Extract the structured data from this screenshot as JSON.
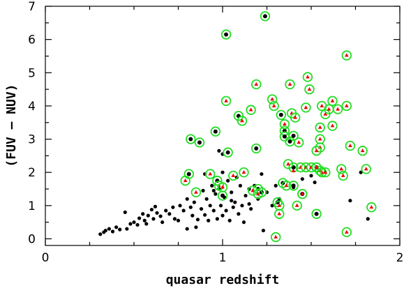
{
  "chart_data": {
    "type": "scatter",
    "xlabel": "quasar redshift",
    "ylabel": "(FUV – NUV)",
    "xlim": [
      0,
      2
    ],
    "ylim": [
      -0.2,
      7
    ],
    "x_ticks": [
      "0",
      "1",
      "2"
    ],
    "y_ticks": [
      "0",
      "1",
      "2",
      "3",
      "4",
      "5",
      "6",
      "7"
    ],
    "x_tick_values": [
      0,
      1,
      2
    ],
    "y_tick_values": [
      0,
      1,
      2,
      3,
      4,
      5,
      6,
      7
    ],
    "x_minor_step": 0.25,
    "y_minor_step": 0.5,
    "grid": false,
    "legend": "none",
    "colors": {
      "black_dot": "#000000",
      "circle": "#22dd22",
      "triangle": "#ee0000"
    },
    "series": [
      {
        "marker": "black_dot",
        "points": [
          [
            0.31,
            0.14
          ],
          [
            0.33,
            0.2
          ],
          [
            0.34,
            0.25
          ],
          [
            0.36,
            0.3
          ],
          [
            0.38,
            0.22
          ],
          [
            0.4,
            0.35
          ],
          [
            0.42,
            0.28
          ],
          [
            0.45,
            0.8
          ],
          [
            0.46,
            0.3
          ],
          [
            0.48,
            0.45
          ],
          [
            0.5,
            0.5
          ],
          [
            0.52,
            0.42
          ],
          [
            0.53,
            0.62
          ],
          [
            0.55,
            0.75
          ],
          [
            0.56,
            0.55
          ],
          [
            0.57,
            0.45
          ],
          [
            0.58,
            0.7
          ],
          [
            0.6,
            0.88
          ],
          [
            0.61,
            0.6
          ],
          [
            0.62,
            0.97
          ],
          [
            0.63,
            0.78
          ],
          [
            0.65,
            0.68
          ],
          [
            0.66,
            0.5
          ],
          [
            0.68,
            0.85
          ],
          [
            0.7,
            0.75
          ],
          [
            0.72,
            0.95
          ],
          [
            0.73,
            0.6
          ],
          [
            0.75,
            0.55
          ],
          [
            0.76,
            1.0
          ],
          [
            0.78,
            0.85
          ],
          [
            0.8,
            0.3
          ],
          [
            0.8,
            1.2
          ],
          [
            0.82,
            0.95
          ],
          [
            0.83,
            0.7
          ],
          [
            0.84,
            1.1
          ],
          [
            0.85,
            0.35
          ],
          [
            0.86,
            0.58
          ],
          [
            0.88,
            0.9
          ],
          [
            0.89,
            1.45
          ],
          [
            0.9,
            0.72
          ],
          [
            0.91,
            1.2
          ],
          [
            0.92,
            0.55
          ],
          [
            0.93,
            1.0
          ],
          [
            0.94,
            1.6
          ],
          [
            0.95,
            0.85
          ],
          [
            0.96,
            1.35
          ],
          [
            0.97,
            0.6
          ],
          [
            0.98,
            1.5
          ],
          [
            0.99,
            1.0
          ],
          [
            1.0,
            0.7
          ],
          [
            1.0,
            2.0
          ],
          [
            1.01,
            1.25
          ],
          [
            1.02,
            0.85
          ],
          [
            1.03,
            1.75
          ],
          [
            1.04,
            0.55
          ],
          [
            1.05,
            1.4
          ],
          [
            1.06,
            0.95
          ],
          [
            1.07,
            1.1
          ],
          [
            1.08,
            1.85
          ],
          [
            1.09,
            0.75
          ],
          [
            1.1,
            1.6
          ],
          [
            1.11,
            1.0
          ],
          [
            1.12,
            0.5
          ],
          [
            1.13,
            1.3
          ],
          [
            1.15,
            1.5
          ],
          [
            1.16,
            0.9
          ],
          [
            1.18,
            1.6
          ],
          [
            1.2,
            1.2
          ],
          [
            1.22,
            1.95
          ],
          [
            1.23,
            0.25
          ],
          [
            1.25,
            1.4
          ],
          [
            1.28,
            1.0
          ],
          [
            1.3,
            1.6
          ],
          [
            1.32,
            1.2
          ],
          [
            1.4,
            1.55
          ],
          [
            1.45,
            1.8
          ],
          [
            1.5,
            1.9
          ],
          [
            1.52,
            1.7
          ],
          [
            1.72,
            1.15
          ],
          [
            1.78,
            2.0
          ],
          [
            1.82,
            0.6
          ],
          [
            1.0,
            2.55
          ],
          [
            0.98,
            2.65
          ],
          [
            0.9,
            1.95
          ],
          [
            0.95,
            1.45
          ],
          [
            1.05,
            1.15
          ],
          [
            1.15,
            1.05
          ]
        ]
      },
      {
        "marker": "circle_black",
        "points": [
          [
            1.24,
            6.7
          ],
          [
            1.02,
            6.15
          ],
          [
            0.96,
            3.23
          ],
          [
            0.87,
            2.9
          ],
          [
            0.82,
            3.0
          ],
          [
            1.03,
            2.6
          ],
          [
            1.19,
            2.72
          ],
          [
            1.33,
            3.73
          ],
          [
            1.35,
            3.25
          ],
          [
            1.35,
            3.08
          ],
          [
            1.38,
            2.93
          ],
          [
            1.4,
            3.1
          ],
          [
            1.2,
            1.5
          ],
          [
            1.22,
            1.4
          ],
          [
            1.09,
            3.7
          ],
          [
            0.81,
            1.95
          ],
          [
            1.0,
            1.3
          ],
          [
            1.45,
            1.35
          ],
          [
            1.53,
            2.15
          ],
          [
            1.4,
            1.6
          ],
          [
            1.31,
            1.1
          ],
          [
            1.53,
            0.75
          ],
          [
            1.34,
            1.68
          ],
          [
            0.97,
            1.75
          ],
          [
            1.4,
            2.15
          ]
        ]
      },
      {
        "marker": "circle_triangle",
        "points": [
          [
            1.02,
            4.15
          ],
          [
            1.19,
            4.65
          ],
          [
            1.28,
            4.2
          ],
          [
            1.29,
            4.0
          ],
          [
            1.16,
            3.88
          ],
          [
            1.38,
            4.65
          ],
          [
            1.48,
            4.87
          ],
          [
            1.49,
            4.5
          ],
          [
            1.47,
            3.95
          ],
          [
            1.56,
            4.0
          ],
          [
            1.58,
            3.75
          ],
          [
            1.6,
            3.9
          ],
          [
            1.62,
            4.15
          ],
          [
            1.65,
            3.9
          ],
          [
            1.7,
            5.52
          ],
          [
            1.7,
            4.0
          ],
          [
            1.62,
            3.4
          ],
          [
            1.55,
            3.35
          ],
          [
            1.55,
            3.0
          ],
          [
            1.55,
            2.75
          ],
          [
            1.53,
            2.65
          ],
          [
            1.43,
            2.9
          ],
          [
            1.35,
            3.45
          ],
          [
            1.39,
            3.78
          ],
          [
            1.41,
            3.65
          ],
          [
            1.11,
            3.55
          ],
          [
            1.37,
            2.25
          ],
          [
            1.44,
            2.15
          ],
          [
            1.47,
            2.15
          ],
          [
            1.5,
            2.15
          ],
          [
            1.55,
            2.05
          ],
          [
            1.56,
            2.0
          ],
          [
            1.58,
            2.0
          ],
          [
            1.53,
            2.15
          ],
          [
            1.67,
            2.1
          ],
          [
            1.68,
            1.9
          ],
          [
            1.72,
            2.8
          ],
          [
            1.79,
            2.65
          ],
          [
            1.81,
            2.1
          ],
          [
            1.84,
            0.95
          ],
          [
            1.7,
            0.2
          ],
          [
            1.3,
            0.05
          ],
          [
            1.32,
            0.75
          ],
          [
            1.32,
            1.0
          ],
          [
            1.42,
            1.0
          ],
          [
            1.36,
            1.6
          ],
          [
            1.45,
            1.35
          ],
          [
            1.17,
            1.45
          ],
          [
            1.12,
            2.0
          ],
          [
            0.93,
            1.95
          ],
          [
            0.85,
            1.4
          ],
          [
            0.79,
            1.75
          ],
          [
            0.98,
            1.6
          ],
          [
            1.0,
            1.55
          ],
          [
            1.06,
            1.9
          ],
          [
            1.2,
            1.35
          ]
        ]
      },
      {
        "marker": "triangle",
        "points": [
          [
            1.4,
            2.05
          ]
        ]
      }
    ]
  }
}
